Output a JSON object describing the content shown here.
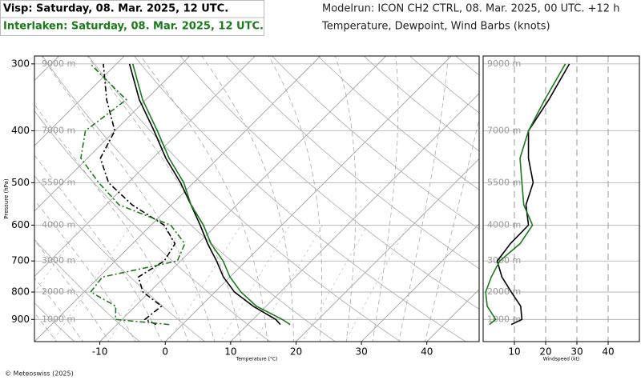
{
  "header": {
    "title_1": "Visp: Saturday, 08. Mar. 2025, 12 UTC.",
    "title_2": "Interlaken: Saturday, 08. Mar. 2025, 12 UTC.",
    "model_run": "Modelrun: ICON CH2 CTRL, 08. Mar. 2025, 00 UTC. +12 h",
    "variables": "Temperature, Dewpoint, Wind Barbs (knots)"
  },
  "footer": "© Meteoswiss (2025)",
  "chart_data": [
    {
      "type": "skewt",
      "x_label": "Temperature (°C)",
      "y_label": "Pressure (hPa)",
      "xlim": [
        -20,
        48
      ],
      "xticks": [
        -10,
        0,
        10,
        20,
        30,
        40
      ],
      "ylim": [
        990,
        290
      ],
      "yticks": [
        300,
        400,
        500,
        600,
        700,
        800,
        900
      ],
      "altitude_labels": [
        "9000 m",
        "7000 m",
        "5500 m",
        "4000 m",
        "3000 m",
        "2000 m",
        "1000 m"
      ],
      "log_y": true,
      "grid": true,
      "y": [
        920,
        900,
        850,
        800,
        750,
        700,
        650,
        600,
        550,
        500,
        450,
        400,
        350,
        300
      ],
      "series": [
        {
          "color": "#000000",
          "dash": false,
          "values": [
            15,
            13.5,
            8,
            3,
            -1,
            -4.5,
            -8.5,
            -12.5,
            -17,
            -22,
            -28,
            -34,
            -41,
            -48
          ]
        },
        {
          "color": "#1a7a1a",
          "dash": false,
          "values": [
            16.5,
            14.5,
            8.5,
            4,
            0,
            -3.5,
            -8,
            -12,
            -17,
            -21.5,
            -27.5,
            -33.5,
            -40.5,
            -47.5
          ]
        },
        {
          "color": "#000000",
          "dash": true,
          "values": [
            -4,
            -6.5,
            -6,
            -11,
            -14,
            -12.5,
            -13.5,
            -18,
            -26,
            -33,
            -38,
            -40,
            -46,
            -52
          ]
        },
        {
          "color": "#1a7a1a",
          "dash": true,
          "values": [
            -2,
            -11,
            -13,
            -19,
            -19.5,
            -10.5,
            -12,
            -17,
            -28,
            -34.5,
            -41,
            -44.5,
            -43,
            -54
          ]
        }
      ]
    },
    {
      "type": "profile",
      "x_label": "Windspeed (kt)",
      "xlim": [
        0,
        50
      ],
      "xticks": [
        10,
        20,
        30,
        40
      ],
      "ylim": [
        990,
        290
      ],
      "yticks": [
        300,
        400,
        500,
        600,
        700,
        800,
        900
      ],
      "altitude_labels": [
        "9000 m",
        "7000 m",
        "5500 m",
        "4000 m",
        "3000 m",
        "2000 m",
        "1000 m"
      ],
      "log_y": true,
      "grid": true,
      "y": [
        920,
        900,
        850,
        800,
        750,
        700,
        650,
        600,
        550,
        500,
        450,
        400,
        350,
        300
      ],
      "series": [
        {
          "color": "#000000",
          "values": [
            9,
            12.4,
            12,
            9,
            6,
            4.5,
            8.7,
            14.5,
            13.7,
            16,
            14.5,
            14.5,
            21,
            27.6
          ]
        },
        {
          "color": "#1a7a1a",
          "values": [
            2,
            4,
            1.3,
            0.8,
            2.6,
            5.3,
            11.8,
            15.8,
            13,
            12.4,
            11.8,
            14.5,
            19.7,
            26.3
          ]
        }
      ]
    }
  ]
}
